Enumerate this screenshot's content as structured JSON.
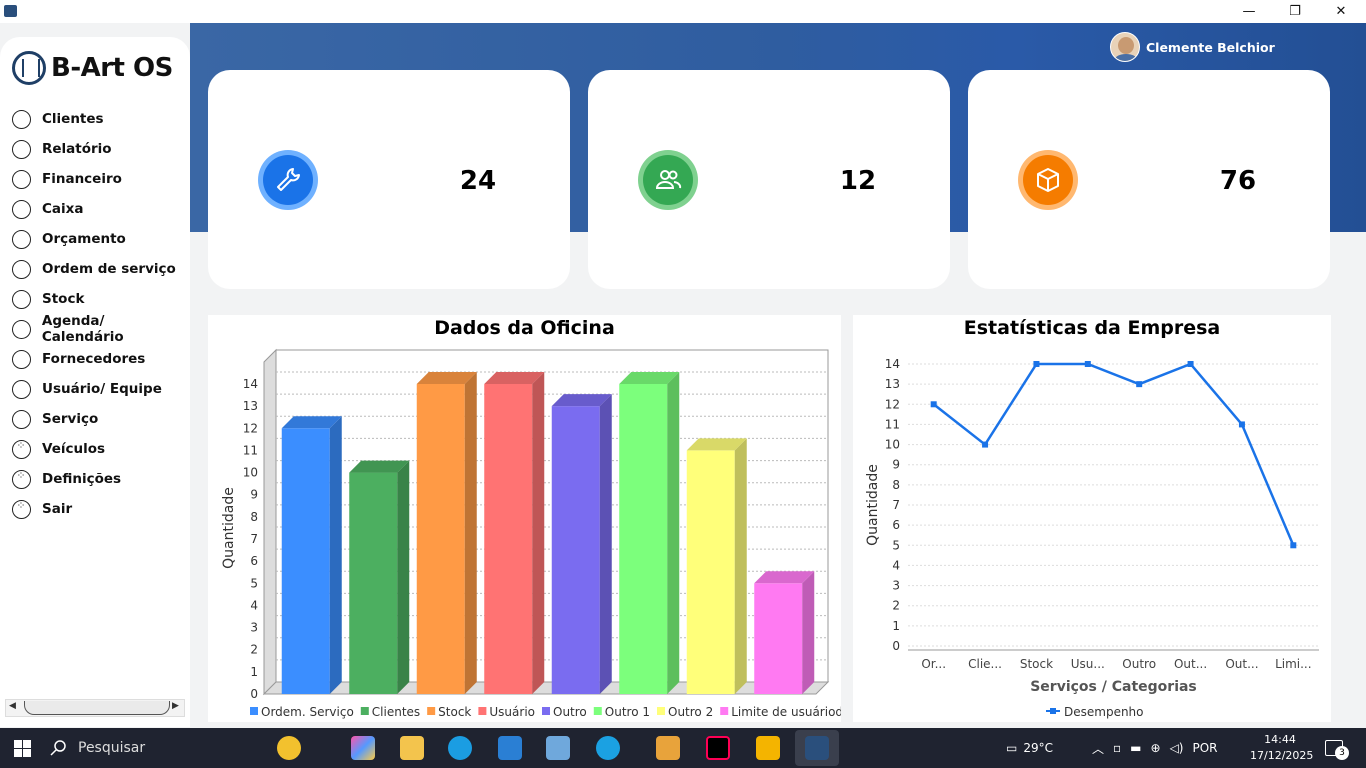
{
  "window": {
    "minimize": "—",
    "maximize": "❐",
    "close": "✕"
  },
  "user": {
    "name": "Clemente Belchior"
  },
  "logo": {
    "text": "B-Art OS"
  },
  "menu": [
    {
      "label": "Clientes",
      "icon": "circle"
    },
    {
      "label": "Relatório",
      "icon": "circle"
    },
    {
      "label": "Financeiro",
      "icon": "circle"
    },
    {
      "label": "Caixa",
      "icon": "circle"
    },
    {
      "label": "Orçamento",
      "icon": "circle"
    },
    {
      "label": "Ordem de serviço",
      "icon": "circle"
    },
    {
      "label": "Stock",
      "icon": "circle"
    },
    {
      "label": "Agenda/ Calendário",
      "icon": "circle"
    },
    {
      "label": "Fornecedores",
      "icon": "circle"
    },
    {
      "label": "Usuário/ Equipe",
      "icon": "circle"
    },
    {
      "label": "Serviço",
      "icon": "circle"
    },
    {
      "label": "Veículos",
      "icon": "dotted-circle"
    },
    {
      "label": "Definições",
      "icon": "dotted-circle"
    },
    {
      "label": "Sair",
      "icon": "dotted-circle"
    }
  ],
  "stats": [
    {
      "value": "24",
      "icon": "wrench-icon",
      "color": "#1a73e8"
    },
    {
      "value": "12",
      "icon": "users-icon",
      "color": "#34a853"
    },
    {
      "value": "76",
      "icon": "box-icon",
      "color": "#f57c00"
    }
  ],
  "chart_data": [
    {
      "type": "bar",
      "title": "Dados da Oficina",
      "xlabel": "",
      "ylabel": "Quantidade",
      "ylim": [
        0,
        14
      ],
      "categories": [
        "Ordem. Serviço",
        "Clientes",
        "Stock",
        "Usuário",
        "Outro",
        "Outro 1",
        "Outro 2",
        "Limite de usuáriod"
      ],
      "values": [
        12,
        10,
        14,
        14,
        13,
        14,
        11,
        5
      ],
      "colors": [
        "#3b8eff",
        "#4caf60",
        "#ff9a45",
        "#ff7373",
        "#7a6cf0",
        "#7cff7c",
        "#ffff7a",
        "#ff7af2"
      ],
      "legend": "bottom",
      "grid": true
    },
    {
      "type": "line",
      "title": "Estatísticas da Empresa",
      "xlabel": "Serviços / Categorias",
      "ylabel": "Quantidade",
      "ylim": [
        0,
        14
      ],
      "categories": [
        "Or...",
        "Clie...",
        "Stock",
        "Usu...",
        "Outro",
        "Out...",
        "Out...",
        "Limi..."
      ],
      "series": [
        {
          "name": "Desempenho",
          "values": [
            12,
            10,
            14,
            14,
            13,
            14,
            11,
            5
          ],
          "color": "#1a73e8"
        }
      ],
      "legend": "bottom",
      "grid": true
    }
  ],
  "taskbar": {
    "search_placeholder": "Pesquisar",
    "weather": "29°C",
    "language": "POR",
    "time": "14:44",
    "date": "17/12/2025",
    "notifications": "3"
  }
}
